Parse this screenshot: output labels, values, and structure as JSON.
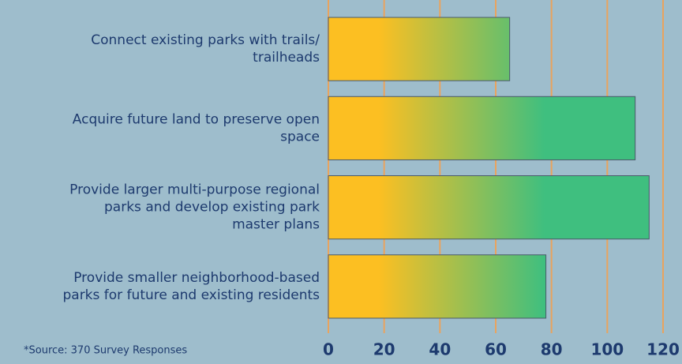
{
  "chart_data": {
    "type": "barh",
    "categories": [
      [
        "Connect existing parks with trails/",
        "trailheads"
      ],
      [
        "Acquire future land to preserve open",
        "space"
      ],
      [
        "Provide larger multi-purpose regional",
        "parks and develop existing park",
        "master plans"
      ],
      [
        "Provide smaller neighborhood-based",
        "parks for future and existing residents"
      ]
    ],
    "values": [
      65,
      110,
      115,
      78
    ],
    "colors": [
      "#fcbf22",
      "#3fbf7f"
    ],
    "xlim": [
      0,
      120
    ],
    "xticks": [
      0,
      20,
      40,
      60,
      80,
      100,
      120
    ],
    "grid": true,
    "note": "*Source: 370 Survey Responses"
  }
}
